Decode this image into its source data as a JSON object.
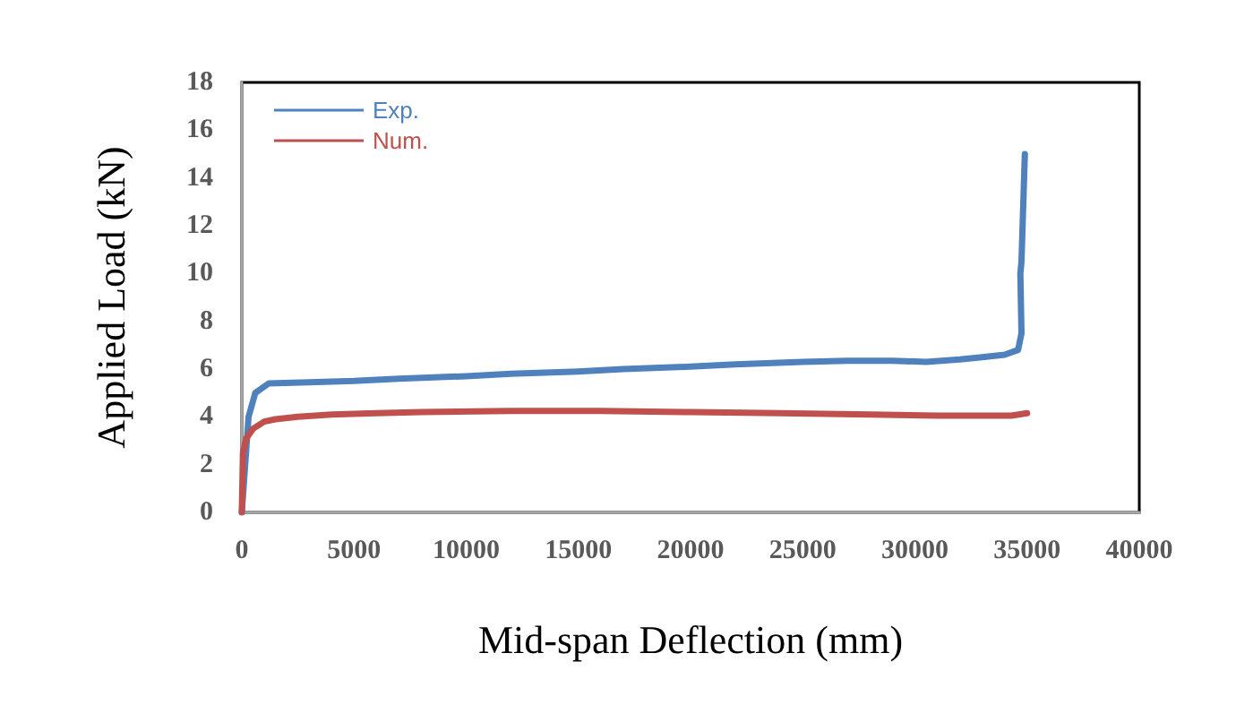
{
  "chart_data": {
    "type": "line",
    "xlabel": "Mid-span Deflection (mm)",
    "ylabel": "Applied Load (kN)",
    "xlim": [
      0,
      40000
    ],
    "xticks": [
      0,
      5000,
      10000,
      15000,
      20000,
      25000,
      30000,
      35000,
      40000
    ],
    "ylim": [
      0,
      18
    ],
    "yticks": [
      0,
      2,
      4,
      6,
      8,
      10,
      12,
      14,
      16,
      18
    ],
    "grid": false,
    "legend": "top left",
    "marker": "none",
    "line_style": "solid",
    "series": [
      {
        "name": "Exp.",
        "color": "#4f81bd",
        "x": [
          0,
          150,
          300,
          600,
          1200,
          3000,
          5000,
          7000,
          10000,
          12000,
          15000,
          17000,
          20000,
          22000,
          25000,
          27000,
          29000,
          30500,
          32000,
          33000,
          34000,
          34600,
          34750,
          34700,
          34750,
          34800,
          34900
        ],
        "values": [
          0,
          2,
          4,
          5,
          5.4,
          5.45,
          5.5,
          5.6,
          5.7,
          5.8,
          5.9,
          6,
          6.1,
          6.2,
          6.3,
          6.35,
          6.35,
          6.3,
          6.4,
          6.5,
          6.6,
          6.8,
          7.5,
          10,
          10.5,
          12,
          15
        ]
      },
      {
        "name": "Num.",
        "color": "#c0504d",
        "x": [
          0,
          50,
          200,
          500,
          1000,
          1500,
          2500,
          4000,
          6000,
          8000,
          12000,
          16000,
          20000,
          24000,
          28000,
          31000,
          33000,
          34300,
          35000
        ],
        "values": [
          0,
          2.5,
          3.1,
          3.5,
          3.8,
          3.9,
          4,
          4.1,
          4.15,
          4.2,
          4.25,
          4.25,
          4.2,
          4.15,
          4.1,
          4.05,
          4.05,
          4.05,
          4.15
        ]
      }
    ]
  }
}
